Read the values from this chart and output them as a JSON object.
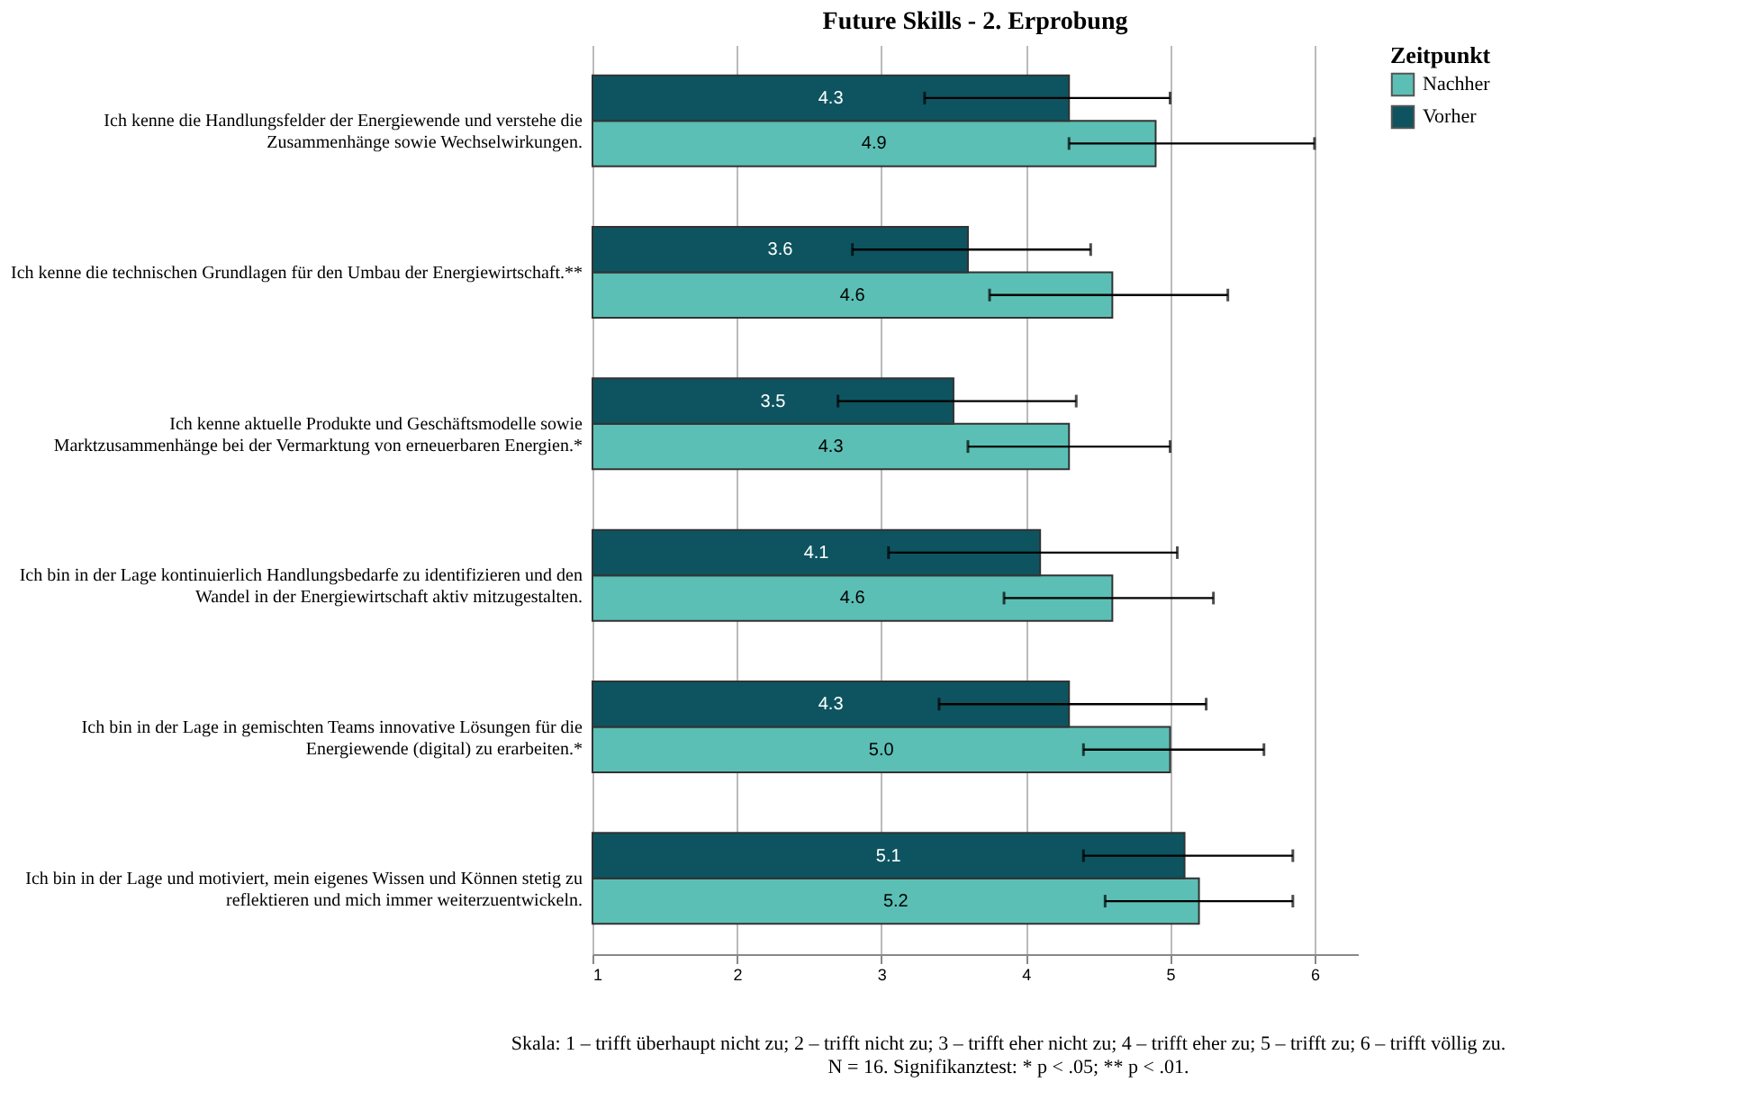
{
  "chart_data": {
    "type": "bar",
    "orientation": "horizontal",
    "title": "Future Skills - 2. Erprobung",
    "categories": [
      "Ich kenne die Handlungsfelder der Energiewende und verstehe die\nZusammenhänge sowie Wechselwirkungen.",
      "Ich kenne die technischen Grundlagen für den Umbau der Energiewirtschaft.**",
      "Ich kenne aktuelle Produkte und Geschäftsmodelle sowie\nMarktzusammenhänge bei der Vermarktung von erneuerbaren Energien.*",
      "Ich bin in der Lage kontinuierlich Handlungsbedarfe zu identifizieren und den\nWandel in der Energiewirtschaft aktiv mitzugestalten.",
      "Ich bin in der Lage in gemischten Teams innovative Lösungen für die\nEnergiewende (digital) zu erarbeiten.*",
      "Ich bin in der Lage und motiviert, mein eigenes Wissen und Können stetig zu\nreflektieren und mich immer weiterzuentwickeln."
    ],
    "series": [
      {
        "name": "Nachher",
        "color": "#5bbfb5",
        "values": [
          4.9,
          4.6,
          4.3,
          4.6,
          5.0,
          5.2
        ],
        "value_labels": [
          "4.9",
          "4.6",
          "4.3",
          "4.6",
          "5.0",
          "5.2"
        ],
        "errors": [
          [
            4.3,
            6.0
          ],
          [
            3.75,
            5.4
          ],
          [
            3.6,
            5.0
          ],
          [
            3.85,
            5.3
          ],
          [
            4.4,
            5.65
          ],
          [
            4.55,
            5.85
          ]
        ]
      },
      {
        "name": "Vorher",
        "color": "#0d5460",
        "values": [
          4.3,
          3.6,
          3.5,
          4.1,
          4.3,
          5.1
        ],
        "value_labels": [
          "4.3",
          "3.6",
          "3.5",
          "4.1",
          "4.3",
          "5.1"
        ],
        "errors": [
          [
            3.3,
            5.0
          ],
          [
            2.8,
            4.45
          ],
          [
            2.7,
            4.35
          ],
          [
            3.05,
            5.05
          ],
          [
            3.4,
            5.25
          ],
          [
            4.4,
            5.85
          ]
        ]
      }
    ],
    "xlim": [
      1,
      6.3
    ],
    "xticks": [
      1,
      2,
      3,
      4,
      5,
      6
    ],
    "grid": "x",
    "legend": "top right",
    "legend_title": "Zeitpunkt",
    "annotations": [
      "Skala: 1 – trifft überhaupt nicht zu; 2 – trifft nicht zu; 3 – trifft eher nicht zu; 4 – trifft eher zu; 5 – trifft zu; 6 – trifft völlig zu.",
      "N = 16. Signifikanztest:  * p < .05; ** p < .01."
    ]
  }
}
